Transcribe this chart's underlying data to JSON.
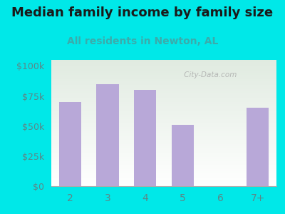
{
  "title": "Median family income by family size",
  "subtitle": "All residents in Newton, AL",
  "categories": [
    "2",
    "3",
    "4",
    "5",
    "6",
    "7+"
  ],
  "values": [
    70000,
    85000,
    80000,
    51000,
    0,
    65000
  ],
  "bar_color": "#b8a8d8",
  "title_color": "#1a1a1a",
  "subtitle_color": "#3aacac",
  "bg_color": "#00e8e8",
  "yticks": [
    0,
    25000,
    50000,
    75000,
    100000
  ],
  "ytick_labels": [
    "$0",
    "$25k",
    "$50k",
    "$75k",
    "$100k"
  ],
  "ylim": [
    0,
    105000
  ],
  "tick_color": "#5a8888",
  "watermark": " City-Data.com",
  "title_fontsize": 13,
  "subtitle_fontsize": 10
}
